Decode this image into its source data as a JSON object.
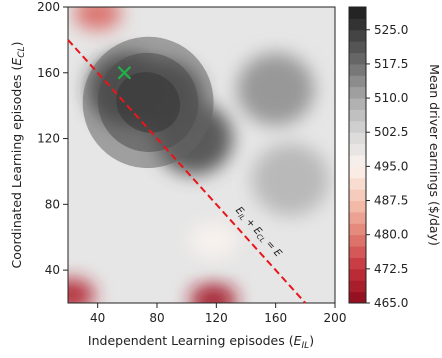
{
  "chart_data": {
    "type": "heatmap",
    "subtype": "filled-contour",
    "title": "",
    "xlabel": {
      "main": "Independent Learning episodes (",
      "var": "E",
      "sub": "IL",
      "close": ")"
    },
    "ylabel": {
      "main": "Coordinated Learning episodes (",
      "var": "E",
      "sub": "CL",
      "close": ")"
    },
    "xlim": [
      20,
      200
    ],
    "ylim": [
      20,
      200
    ],
    "xticks": [
      40,
      80,
      120,
      160,
      200
    ],
    "yticks": [
      40,
      80,
      120,
      160,
      200
    ],
    "colorbar": {
      "label": "Mean driver earnings ($/day)",
      "range": [
        465.0,
        530.0
      ],
      "ticks": [
        "525.0",
        "517.5",
        "510.0",
        "502.5",
        "495.0",
        "487.5",
        "480.0",
        "472.5",
        "465.0"
      ],
      "tick_values": [
        525.0,
        517.5,
        510.0,
        502.5,
        495.0,
        487.5,
        480.0,
        472.5,
        465.0
      ],
      "colormap": "RdGy (red low, white mid, dark gray high)",
      "low_color": "#8b0a1c",
      "mid_color": "#fbf3ef",
      "high_color": "#1c1c1c"
    },
    "marker": {
      "symbol": "x",
      "x": 58,
      "y": 160,
      "color": "#22b04a",
      "meaning": "maximum earnings"
    },
    "constraint_line": {
      "label_parts": [
        "E",
        "IL",
        " + E",
        "CL",
        " = E"
      ],
      "from": [
        20,
        180
      ],
      "to": [
        180,
        20
      ],
      "color": "#e8161b",
      "style": "dashed"
    },
    "regions": [
      {
        "description": "dark peak",
        "x": 60,
        "y": 150,
        "value": 528
      },
      {
        "description": "dark lobe",
        "x": 85,
        "y": 145,
        "value": 525
      },
      {
        "description": "dark band",
        "x": 105,
        "y": 120,
        "value": 522
      },
      {
        "description": "right gray shoulder",
        "x": 160,
        "y": 150,
        "value": 513
      },
      {
        "description": "lower right gray",
        "x": 170,
        "y": 95,
        "value": 508
      },
      {
        "description": "upper-left red strip",
        "x": 40,
        "y": 196,
        "value": 478
      },
      {
        "description": "bottom-left red",
        "x": 22,
        "y": 25,
        "value": 470
      },
      {
        "description": "bottom-center red",
        "x": 118,
        "y": 22,
        "value": 468
      },
      {
        "description": "white spot",
        "x": 118,
        "y": 58,
        "value": 495
      }
    ]
  }
}
